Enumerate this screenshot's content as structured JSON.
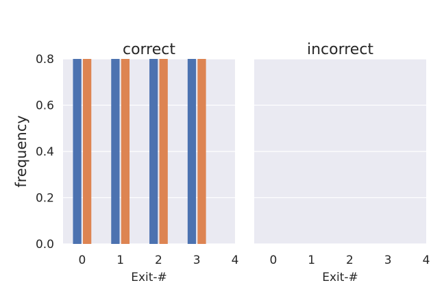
{
  "chart_data": [
    {
      "type": "bar",
      "title": "correct",
      "xlabel": "Exit-#",
      "ylabel": "frequency",
      "x_ticks": [
        "0",
        "1",
        "2",
        "3",
        "4"
      ],
      "y_ticks": [
        "0.0",
        "0.2",
        "0.4",
        "0.6",
        "0.8"
      ],
      "xlim": [
        -0.5,
        4.0
      ],
      "ylim": [
        0,
        0.8
      ],
      "grid": true,
      "categories": [
        0,
        1,
        2,
        3
      ],
      "series": [
        {
          "values": [
            0.8,
            0.8,
            0.8,
            0.8
          ],
          "color": "#4c72b0"
        },
        {
          "values": [
            0.8,
            0.8,
            0.8,
            0.8
          ],
          "color": "#dd8452"
        }
      ],
      "background": "#eaeaf2"
    },
    {
      "type": "bar",
      "title": "incorrect",
      "xlabel": "Exit-#",
      "ylabel": "",
      "x_ticks": [
        "0",
        "1",
        "2",
        "3",
        "4"
      ],
      "y_ticks": [],
      "xlim": [
        -0.5,
        4.0
      ],
      "ylim": [
        0,
        0.8
      ],
      "grid": true,
      "categories": [
        0,
        1,
        2,
        3
      ],
      "series": [
        {
          "values": [
            0,
            0,
            0,
            0
          ],
          "color": "#4c72b0"
        },
        {
          "values": [
            0,
            0,
            0,
            0
          ],
          "color": "#dd8452"
        }
      ],
      "background": "#eaeaf2"
    }
  ]
}
